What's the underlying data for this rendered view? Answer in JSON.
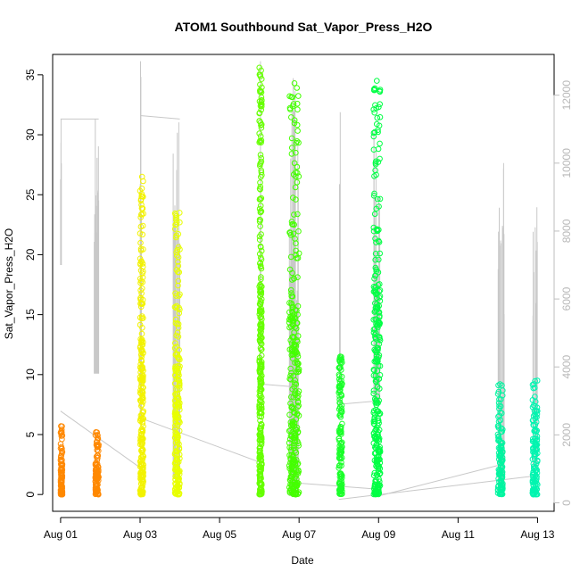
{
  "chart_data": {
    "type": "scatter",
    "title": "ATOM1 Southbound Sat_Vapor_Press_H2O",
    "xlabel": "Date",
    "ylabel": "Sat_Vapor_Press_H2O",
    "x_axis": {
      "type": "date",
      "range": [
        "2016-07-31T19:12",
        "2016-08-13T10:00"
      ],
      "ticks": [
        "2016-08-01",
        "2016-08-03",
        "2016-08-05",
        "2016-08-07",
        "2016-08-09",
        "2016-08-11",
        "2016-08-13"
      ],
      "tick_labels": [
        "Aug 01",
        "Aug 03",
        "Aug 05",
        "Aug 07",
        "Aug 09",
        "Aug 11",
        "Aug 13"
      ]
    },
    "y_axis": {
      "range": [
        -1.4,
        36.7
      ],
      "ticks": [
        0,
        5,
        10,
        15,
        20,
        25,
        30,
        35
      ],
      "tick_labels": [
        "0",
        "5",
        "10",
        "15",
        "20",
        "25",
        "30",
        "35"
      ]
    },
    "y2_axis": {
      "range": [
        -250,
        13200
      ],
      "ticks": [
        0,
        2000,
        4000,
        6000,
        8000,
        10000,
        12000
      ],
      "tick_labels": [
        "0",
        "2000",
        "4000",
        "6000",
        "8000",
        "10000",
        "12000"
      ],
      "color": "#bebebe"
    },
    "grid": false,
    "legend": "none",
    "point_clusters": [
      {
        "x_start": "2016-08-01T00:00",
        "x_end": "2016-08-01T01:00",
        "y_min": 0,
        "y_max": 5.7,
        "color": "#ff8800"
      },
      {
        "x_start": "2016-08-01T21:00",
        "x_end": "2016-08-01T23:00",
        "y_min": 0,
        "y_max": 5.2,
        "color": "#ff8800"
      },
      {
        "x_start": "2016-08-03T00:00",
        "x_end": "2016-08-03T02:00",
        "y_min": 0,
        "y_max": 26.5,
        "color": "#f2f200"
      },
      {
        "x_start": "2016-08-03T21:00",
        "x_end": "2016-08-04T00:00",
        "y_min": 0,
        "y_max": 23.5,
        "color": "#e8ff00"
      },
      {
        "x_start": "2016-08-06T00:00",
        "x_end": "2016-08-06T01:30",
        "y_min": 0,
        "y_max": 35.6,
        "color": "#66ff00"
      },
      {
        "x_start": "2016-08-06T18:00",
        "x_end": "2016-08-07T00:00",
        "y_min": 0,
        "y_max": 34.3,
        "color": "#44ff00"
      },
      {
        "x_start": "2016-08-08T00:00",
        "x_end": "2016-08-08T02:00",
        "y_min": 0,
        "y_max": 11.5,
        "color": "#1aff2a"
      },
      {
        "x_start": "2016-08-08T21:00",
        "x_end": "2016-08-09T01:00",
        "y_min": 0,
        "y_max": 34.5,
        "color": "#00ff44"
      },
      {
        "x_start": "2016-08-12T00:00",
        "x_end": "2016-08-12T03:00",
        "y_min": 0,
        "y_max": 9.2,
        "color": "#00f5a0"
      },
      {
        "x_start": "2016-08-12T21:00",
        "x_end": "2016-08-13T00:00",
        "y_min": 0,
        "y_max": 9.5,
        "color": "#00f5b0"
      }
    ],
    "secondary_series": {
      "color": "#c8c8c8",
      "axis": "y2",
      "spikes": [
        {
          "x_start": "2016-08-01T00:00",
          "x_end": "2016-08-01T00:20",
          "y_min": 7000,
          "y_max": 11300
        },
        {
          "x_start": "2016-08-01T20:00",
          "x_end": "2016-08-01T23:00",
          "y_min": 3800,
          "y_max": 11300
        },
        {
          "x_start": "2016-08-03T00:00",
          "x_end": "2016-08-03T01:00",
          "y_min": 2500,
          "y_max": 13000
        },
        {
          "x_start": "2016-08-03T20:00",
          "x_end": "2016-08-04T00:00",
          "y_min": 700,
          "y_max": 11200
        },
        {
          "x_start": "2016-08-06T00:00",
          "x_end": "2016-08-06T01:00",
          "y_min": 3500,
          "y_max": 13000
        },
        {
          "x_start": "2016-08-06T18:00",
          "x_end": "2016-08-07T00:00",
          "y_min": 200,
          "y_max": 12500
        },
        {
          "x_start": "2016-08-08T00:00",
          "x_end": "2016-08-08T01:00",
          "y_min": 2900,
          "y_max": 11500
        },
        {
          "x_start": "2016-08-08T21:00",
          "x_end": "2016-08-09T01:00",
          "y_min": 2900,
          "y_max": 11000
        },
        {
          "x_start": "2016-08-12T00:00",
          "x_end": "2016-08-12T04:00",
          "y_min": 400,
          "y_max": 10000
        },
        {
          "x_start": "2016-08-12T21:00",
          "x_end": "2016-08-13T00:00",
          "y_min": 1000,
          "y_max": 8700
        }
      ],
      "connectors": [
        {
          "x": [
            "2016-08-01T00:00",
            "2016-08-01T23:00"
          ],
          "y": [
            11300,
            11300
          ]
        },
        {
          "x": [
            "2016-08-01T00:00",
            "2016-08-03T01:00"
          ],
          "y": [
            2700,
            1000
          ]
        },
        {
          "x": [
            "2016-08-03T00:00",
            "2016-08-04T00:00"
          ],
          "y": [
            11400,
            11300
          ]
        },
        {
          "x": [
            "2016-08-03T00:00",
            "2016-08-06T00:00"
          ],
          "y": [
            2500,
            1200
          ]
        },
        {
          "x": [
            "2016-08-06T00:00",
            "2016-08-07T00:00"
          ],
          "y": [
            3500,
            3400
          ]
        },
        {
          "x": [
            "2016-08-06T18:00",
            "2016-08-09T00:00"
          ],
          "y": [
            600,
            400
          ]
        },
        {
          "x": [
            "2016-08-08T00:00",
            "2016-08-09T00:00"
          ],
          "y": [
            2900,
            3000
          ]
        },
        {
          "x": [
            "2016-08-08T00:00",
            "2016-08-13T00:00"
          ],
          "y": [
            100,
            800
          ]
        },
        {
          "x": [
            "2016-08-09T00:00",
            "2016-08-12T00:00"
          ],
          "y": [
            200,
            1100
          ]
        }
      ]
    }
  }
}
